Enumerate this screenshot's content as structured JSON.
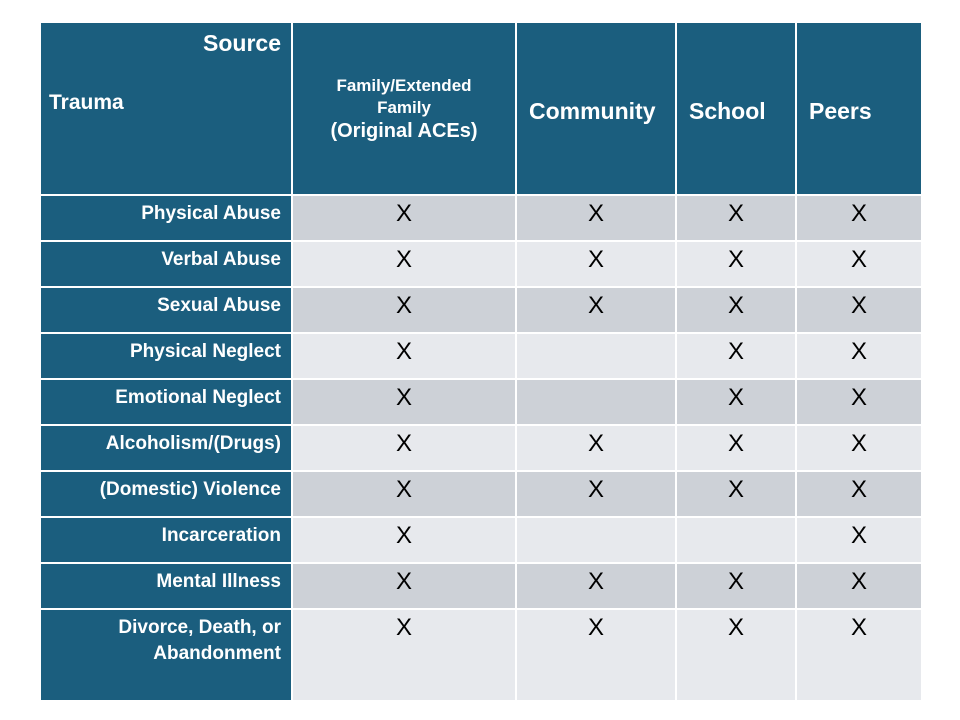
{
  "table": {
    "corner": {
      "source_label": "Source",
      "trauma_label": "Trauma"
    },
    "columns": [
      {
        "label": "Family/Extended Family",
        "sublabel": "(Original ACEs)"
      },
      {
        "label": "Community"
      },
      {
        "label": "School"
      },
      {
        "label": "Peers"
      }
    ],
    "rows": [
      {
        "label": "Physical Abuse",
        "marks": [
          "X",
          "X",
          "X",
          "X"
        ]
      },
      {
        "label": "Verbal Abuse",
        "marks": [
          "X",
          "X",
          "X",
          "X"
        ]
      },
      {
        "label": "Sexual Abuse",
        "marks": [
          "X",
          "X",
          "X",
          "X"
        ]
      },
      {
        "label": "Physical Neglect",
        "marks": [
          "X",
          "",
          "X",
          "X"
        ]
      },
      {
        "label": "Emotional Neglect",
        "marks": [
          "X",
          "",
          "X",
          "X"
        ]
      },
      {
        "label": "Alcoholism/(Drugs)",
        "marks": [
          "X",
          "X",
          "X",
          "X"
        ]
      },
      {
        "label": "(Domestic) Violence",
        "marks": [
          "X",
          "X",
          "X",
          "X"
        ]
      },
      {
        "label": "Incarceration",
        "marks": [
          "X",
          "",
          "",
          "X"
        ]
      },
      {
        "label": "Mental Illness",
        "marks": [
          "X",
          "X",
          "X",
          "X"
        ]
      },
      {
        "label": "Divorce, Death, or Abandonment",
        "marks": [
          "X",
          "X",
          "X",
          "X"
        ]
      }
    ],
    "colors": {
      "header_bg": "#1B5E7E",
      "header_text": "#FFFFFF",
      "row_band_dark": "#CDD1D7",
      "row_band_light": "#E7E9ED",
      "mark_text": "#000000",
      "grid_line": "#FFFFFF"
    }
  }
}
